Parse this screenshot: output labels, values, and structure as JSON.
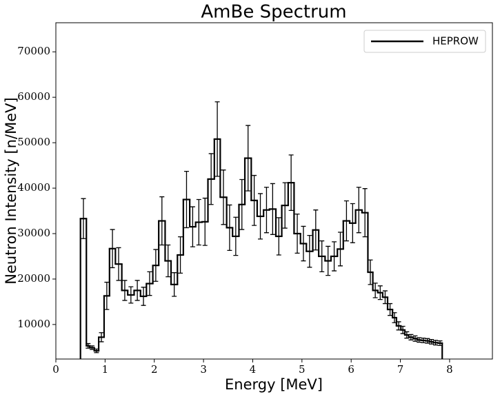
{
  "chart_data": {
    "type": "histogram",
    "title": "AmBe Spectrum",
    "x_label": "Energy [MeV]",
    "y_label": "Neutron Intensity [n/MeV]",
    "bins": [
      0.5,
      0.62,
      0.69,
      0.78,
      0.87,
      0.98,
      1.09,
      1.21,
      1.34,
      1.46,
      1.59,
      1.72,
      1.84,
      1.97,
      2.09,
      2.22,
      2.34,
      2.47,
      2.59,
      2.72,
      2.84,
      2.97,
      3.09,
      3.22,
      3.34,
      3.47,
      3.59,
      3.72,
      3.84,
      3.97,
      4.09,
      4.22,
      4.34,
      4.47,
      4.59,
      4.72,
      4.84,
      4.97,
      5.09,
      5.22,
      5.34,
      5.47,
      5.59,
      5.72,
      5.84,
      5.97,
      6.09,
      6.22,
      6.34,
      6.44,
      6.54,
      6.64,
      6.74,
      6.84,
      6.92,
      7.01,
      7.09,
      7.17,
      7.26,
      7.34,
      7.42,
      7.51,
      7.59,
      7.67,
      7.76,
      7.85
    ],
    "series": [
      {
        "name": "HEPROW",
        "color": "#000000",
        "values": [
          33300,
          5300,
          4900,
          4200,
          7200,
          16300,
          26700,
          23300,
          17500,
          16500,
          17500,
          16200,
          19000,
          23000,
          32800,
          24000,
          18800,
          25300,
          37500,
          31500,
          32500,
          32600,
          42000,
          50800,
          38000,
          31300,
          29400,
          36400,
          46600,
          37300,
          33800,
          35200,
          35400,
          29400,
          36200,
          41200,
          30000,
          27800,
          26100,
          30800,
          25000,
          24000,
          25000,
          26600,
          32800,
          32300,
          35200,
          34600,
          21500,
          17500,
          17000,
          16000,
          13300,
          11500,
          9700,
          8800,
          7700,
          7200,
          6900,
          6600,
          6500,
          6400,
          6200,
          6000,
          5900
        ],
        "errors": [
          4400,
          500,
          400,
          400,
          1000,
          3000,
          4200,
          3600,
          2200,
          1800,
          2200,
          2000,
          2600,
          3500,
          5300,
          3500,
          2600,
          4000,
          6200,
          4400,
          5000,
          5200,
          5600,
          8200,
          6000,
          5000,
          4200,
          5500,
          7200,
          5500,
          5000,
          5000,
          5600,
          4100,
          5000,
          6100,
          4300,
          3800,
          3500,
          4400,
          3400,
          3200,
          3200,
          3700,
          4400,
          4300,
          5000,
          5300,
          2700,
          1600,
          1500,
          1400,
          1300,
          1100,
          900,
          800,
          700,
          600,
          600,
          500,
          500,
          500,
          500,
          500,
          500
        ]
      }
    ],
    "xlim": [
      0,
      8.87
    ],
    "ylim": [
      2400,
      76400
    ],
    "xticks": [
      0,
      1,
      2,
      3,
      4,
      5,
      6,
      7,
      8
    ],
    "yticks": [
      10000,
      20000,
      30000,
      40000,
      50000,
      60000,
      70000
    ],
    "legend": "upper right"
  }
}
